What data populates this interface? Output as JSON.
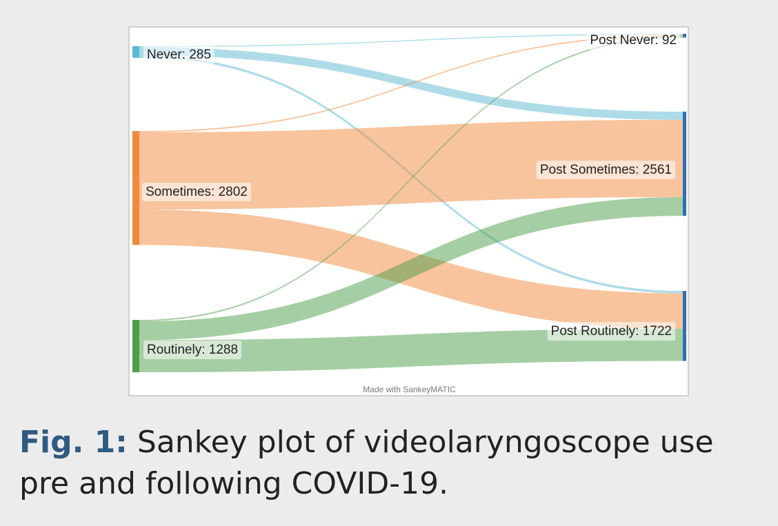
{
  "figure": {
    "credit": "Made with SankeyMATIC",
    "caption_label": "Fig. 1:",
    "caption_text": "Sankey plot of videolaryngoscope use pre and following COVID-19."
  },
  "colors": {
    "never": "#5bb9d1",
    "sometimes": "#ef8a3c",
    "routinely": "#4e9e4a",
    "post_nodes": "#2f6fb2"
  },
  "chart_data": {
    "type": "sankey",
    "nodes": [
      {
        "id": "never",
        "label": "Never: 285",
        "value": 285,
        "column": "pre"
      },
      {
        "id": "sometimes",
        "label": "Sometimes: 2802",
        "value": 2802,
        "column": "pre"
      },
      {
        "id": "routinely",
        "label": "Routinely: 1288",
        "value": 1288,
        "column": "pre"
      },
      {
        "id": "post_never",
        "label": "Post Never: 92",
        "value": 92,
        "column": "post"
      },
      {
        "id": "post_sometimes",
        "label": "Post Sometimes: 2561",
        "value": 2561,
        "column": "post"
      },
      {
        "id": "post_routinely",
        "label": "Post Routinely: 1722",
        "value": 1722,
        "column": "post"
      }
    ],
    "flows": [
      {
        "source": "never",
        "target": "post_never",
        "value": 25
      },
      {
        "source": "never",
        "target": "post_sometimes",
        "value": 200
      },
      {
        "source": "never",
        "target": "post_routinely",
        "value": 60
      },
      {
        "source": "sometimes",
        "target": "post_never",
        "value": 32
      },
      {
        "source": "sometimes",
        "target": "post_sometimes",
        "value": 1900
      },
      {
        "source": "sometimes",
        "target": "post_routinely",
        "value": 870
      },
      {
        "source": "routinely",
        "target": "post_never",
        "value": 35
      },
      {
        "source": "routinely",
        "target": "post_sometimes",
        "value": 461
      },
      {
        "source": "routinely",
        "target": "post_routinely",
        "value": 792
      }
    ]
  }
}
